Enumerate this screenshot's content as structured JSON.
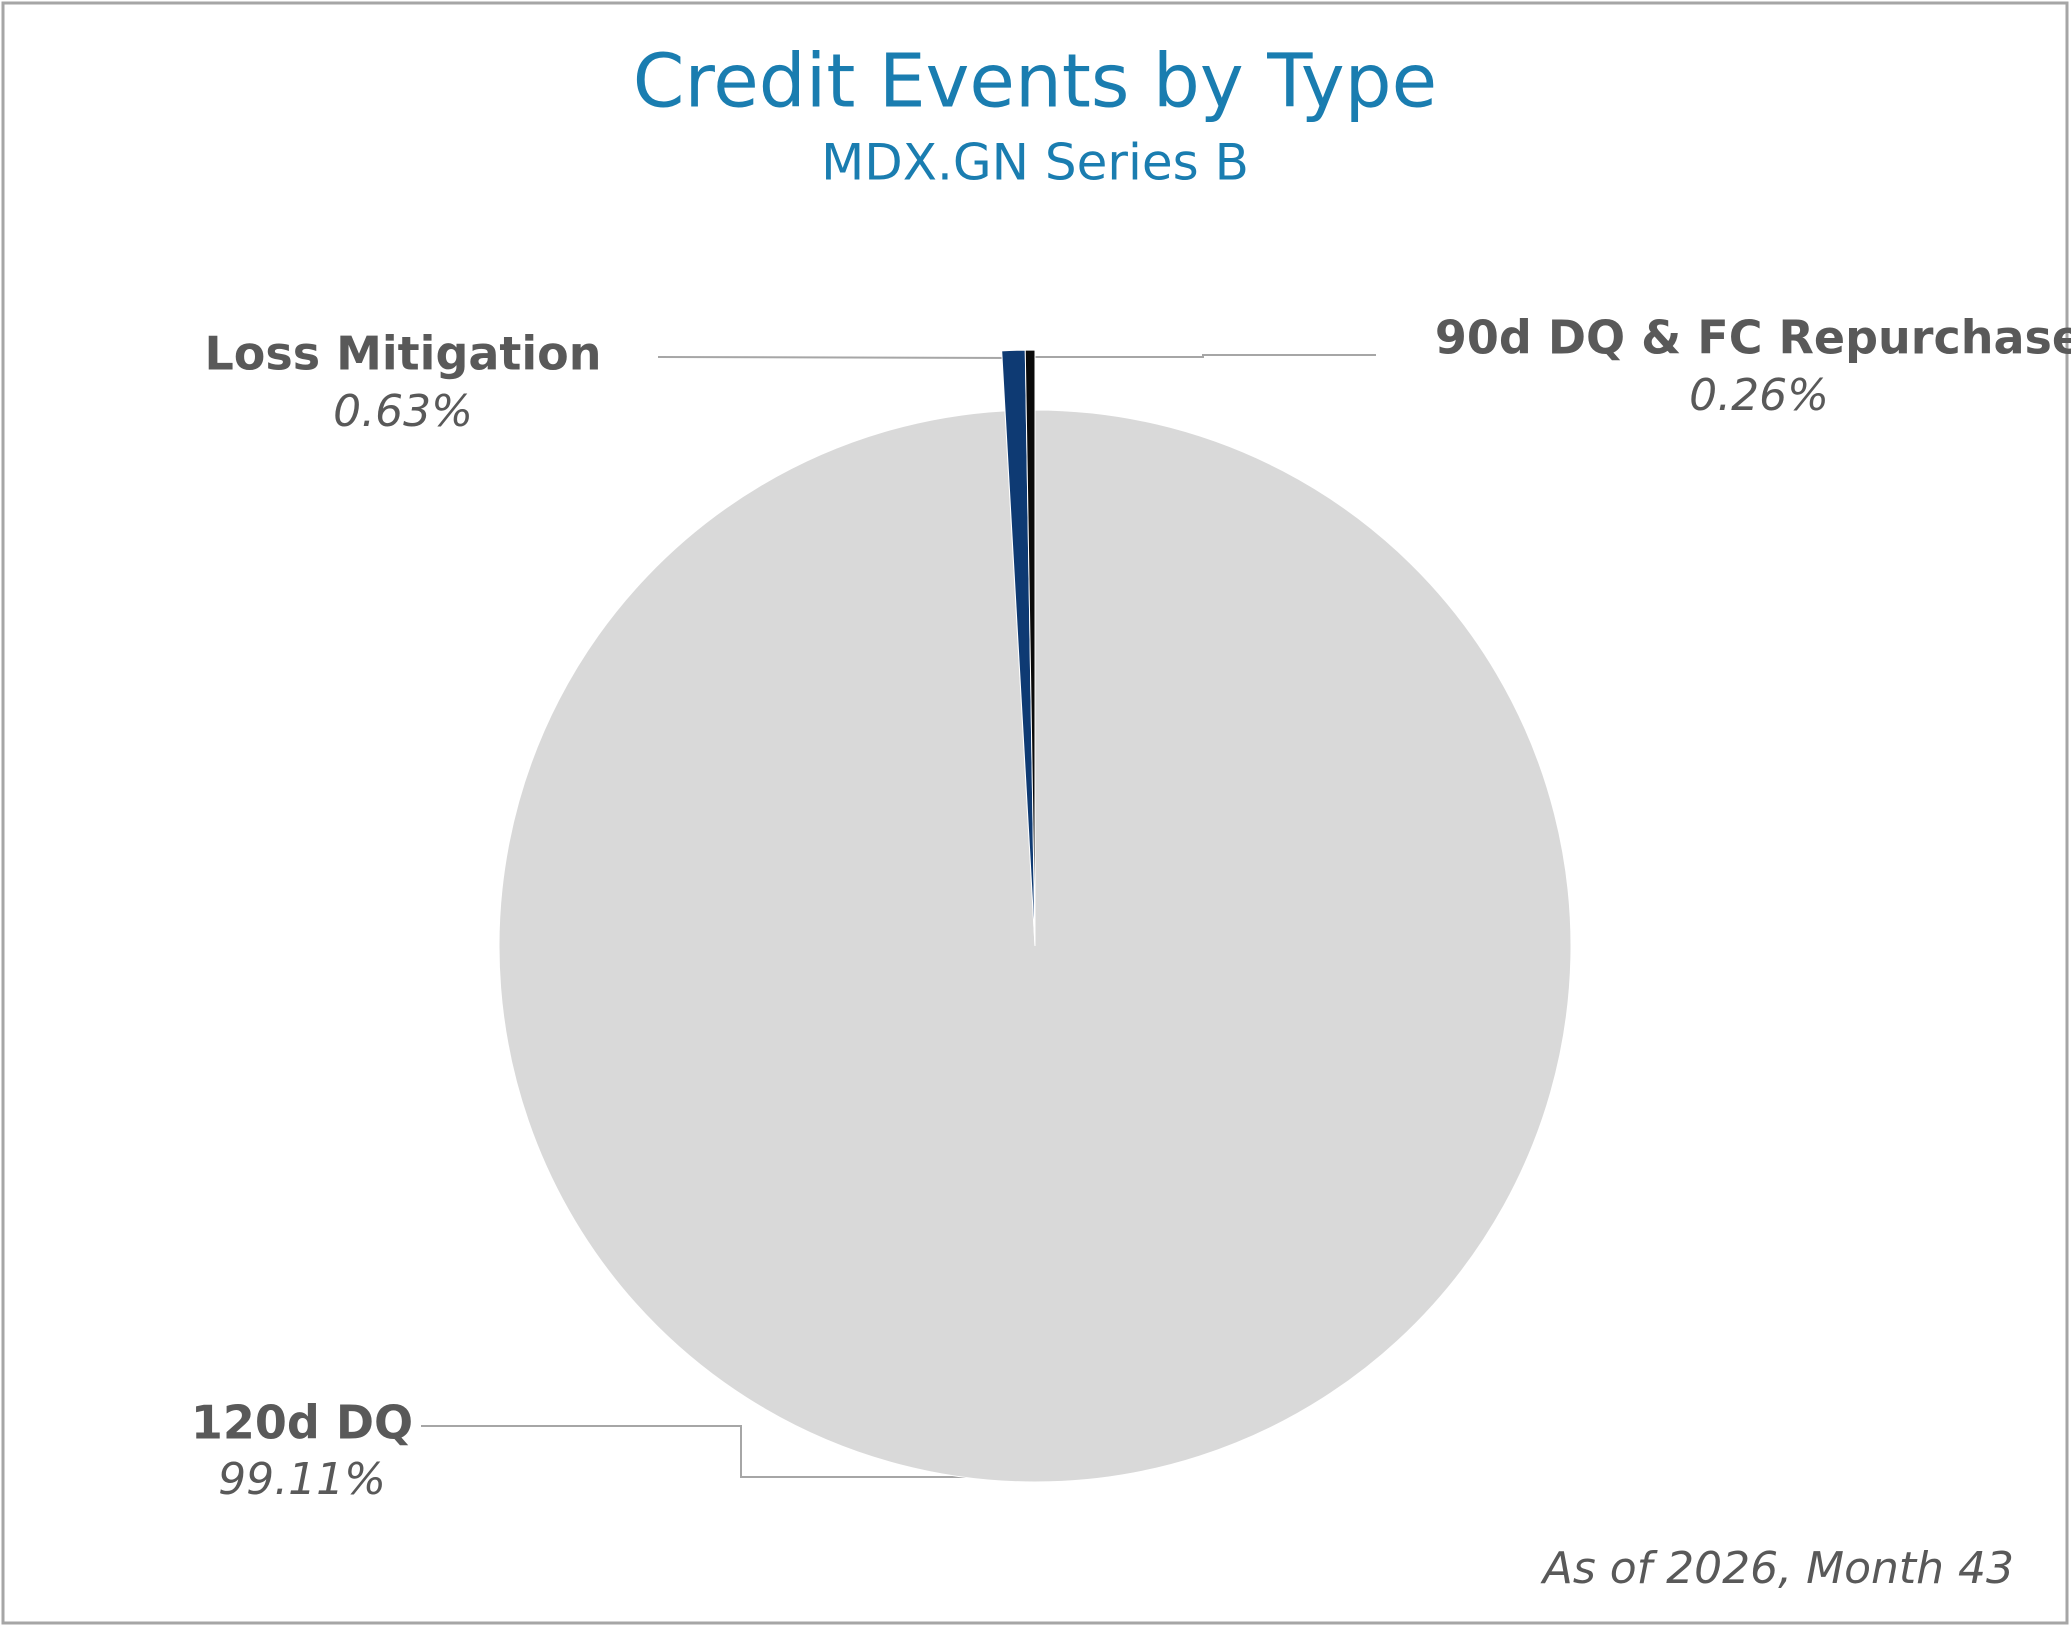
{
  "chart_data": {
    "type": "pie",
    "title": "Credit Events by Type",
    "subtitle": "MDX.GN Series B",
    "categories": [
      "120d DQ",
      "Loss Mitigation",
      "90d DQ & FC Repurchase"
    ],
    "values": [
      99.11,
      0.63,
      0.26
    ],
    "value_labels": [
      "99.11%",
      "0.63%",
      "0.26%"
    ],
    "colors": [
      "#d9d9d9",
      "#0e3a73",
      "#0a0a0a"
    ],
    "footnote": "As of 2026, Month 43"
  }
}
